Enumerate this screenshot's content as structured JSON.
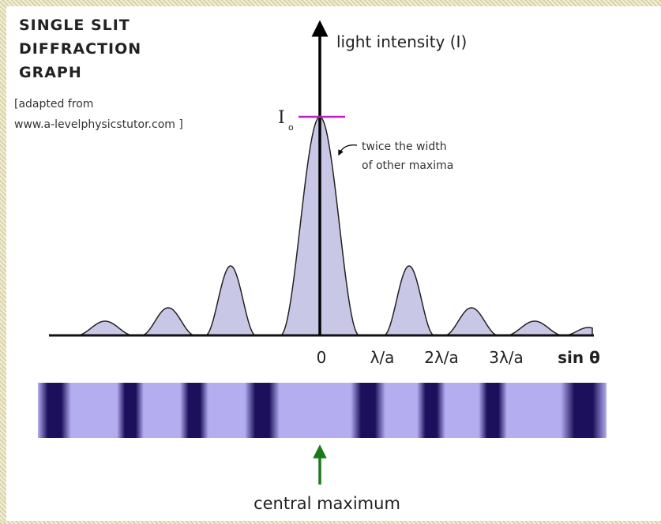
{
  "title": [
    "SINGLE SLIT",
    "DIFFRACTION",
    "GRAPH"
  ],
  "credit": [
    "[adapted from",
    "www.a-levelphysicstutor.com ]"
  ],
  "axis": {
    "y_label": "light intensity (I)",
    "peak_symbol": "I",
    "peak_subscript": "o",
    "x_labels": [
      "0",
      "λ/a",
      "2λ/a",
      "3λ/a"
    ],
    "x_title": "sin θ"
  },
  "annotation": [
    "twice the width",
    "of other maxima"
  ],
  "pointer_label": "central maximum"
}
